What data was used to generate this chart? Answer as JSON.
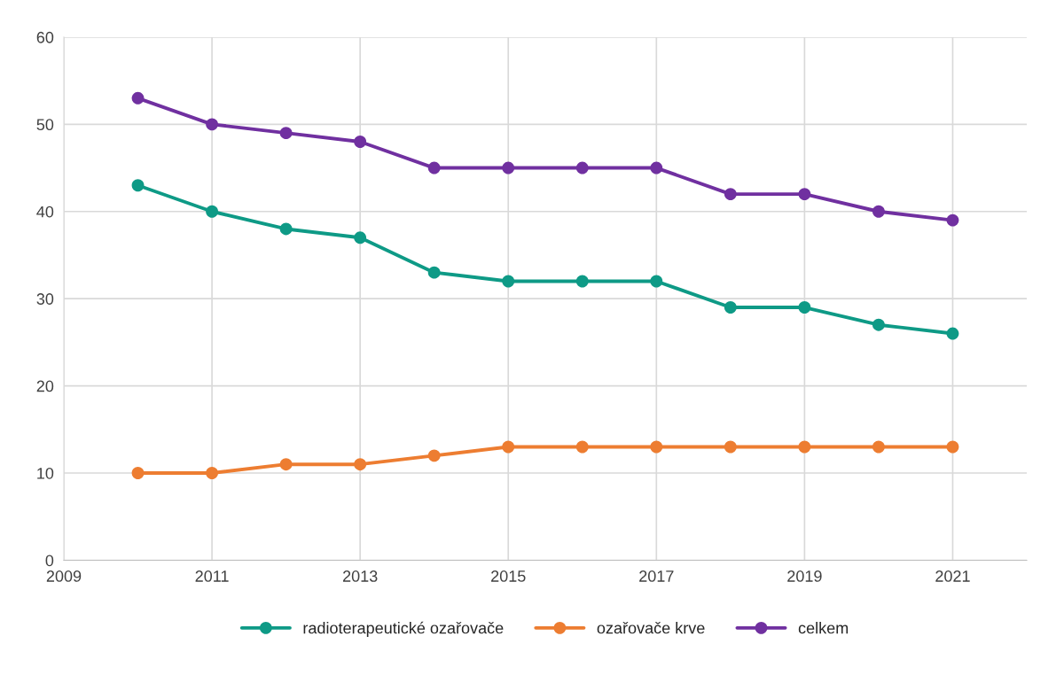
{
  "chart_data": {
    "type": "line",
    "x": [
      2010,
      2011,
      2012,
      2013,
      2014,
      2015,
      2016,
      2017,
      2018,
      2019,
      2020,
      2021
    ],
    "series": [
      {
        "name": "radioterapeutické ozařovače",
        "color": "#0e9a86",
        "values": [
          43,
          40,
          38,
          37,
          33,
          32,
          32,
          32,
          29,
          29,
          27,
          26
        ]
      },
      {
        "name": "ozařovače krve",
        "color": "#ed7d31",
        "values": [
          10,
          10,
          11,
          11,
          12,
          13,
          13,
          13,
          13,
          13,
          13,
          13
        ]
      },
      {
        "name": "celkem",
        "color": "#7030a0",
        "values": [
          53,
          50,
          49,
          48,
          45,
          45,
          45,
          45,
          42,
          42,
          40,
          39
        ]
      }
    ],
    "xlim": [
      2009,
      2022
    ],
    "xticks": [
      2009,
      2011,
      2013,
      2015,
      2017,
      2019,
      2021
    ],
    "ylim": [
      0,
      60
    ],
    "yticks": [
      0,
      10,
      20,
      30,
      40,
      50,
      60
    ],
    "grid": true,
    "legend": "bottom",
    "marker": "circle",
    "line_style": "solid"
  }
}
